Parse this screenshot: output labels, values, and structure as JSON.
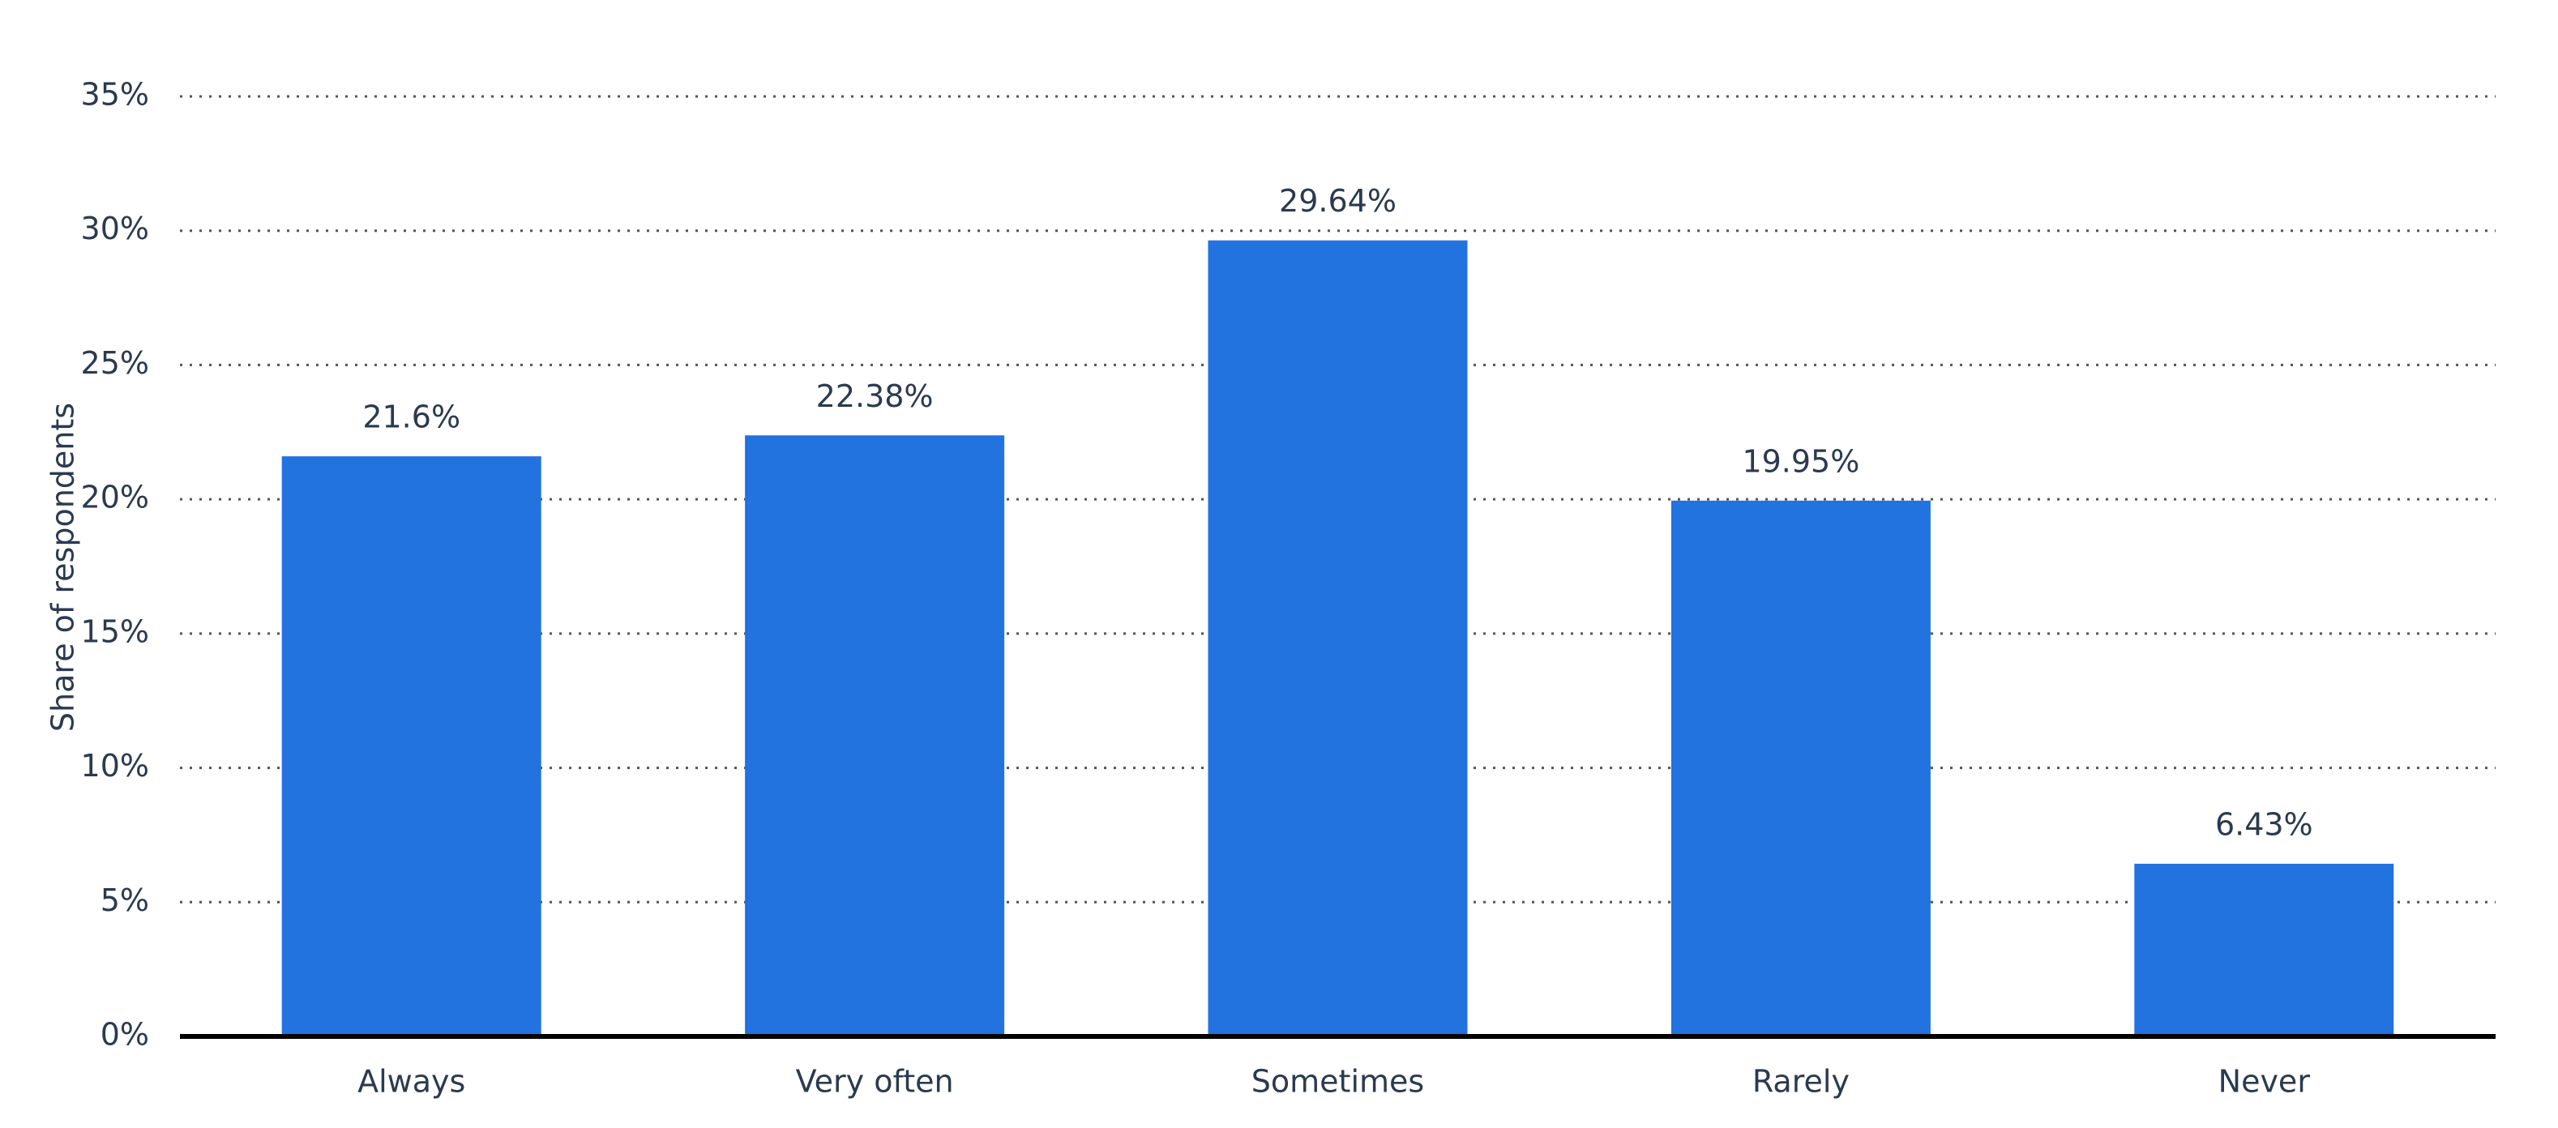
{
  "chart_data": {
    "type": "bar",
    "y_label": "Share of respondents",
    "categories": [
      "Always",
      "Very often",
      "Sometimes",
      "Rarely",
      "Never"
    ],
    "values": [
      21.6,
      22.38,
      29.64,
      19.95,
      6.43
    ],
    "value_labels": [
      "21.6%",
      "22.38%",
      "29.64%",
      "19.95%",
      "6.43%"
    ],
    "color": "#2272e0",
    "ylim": [
      0,
      35
    ],
    "yticks": [
      {
        "value": 0,
        "label": "0%"
      },
      {
        "value": 5,
        "label": "5%"
      },
      {
        "value": 10,
        "label": "10%"
      },
      {
        "value": 15,
        "label": "15%"
      },
      {
        "value": 20,
        "label": "20%"
      },
      {
        "value": 25,
        "label": "25%"
      },
      {
        "value": 30,
        "label": "30%"
      },
      {
        "value": 35,
        "label": "35%"
      }
    ],
    "grid": true
  }
}
